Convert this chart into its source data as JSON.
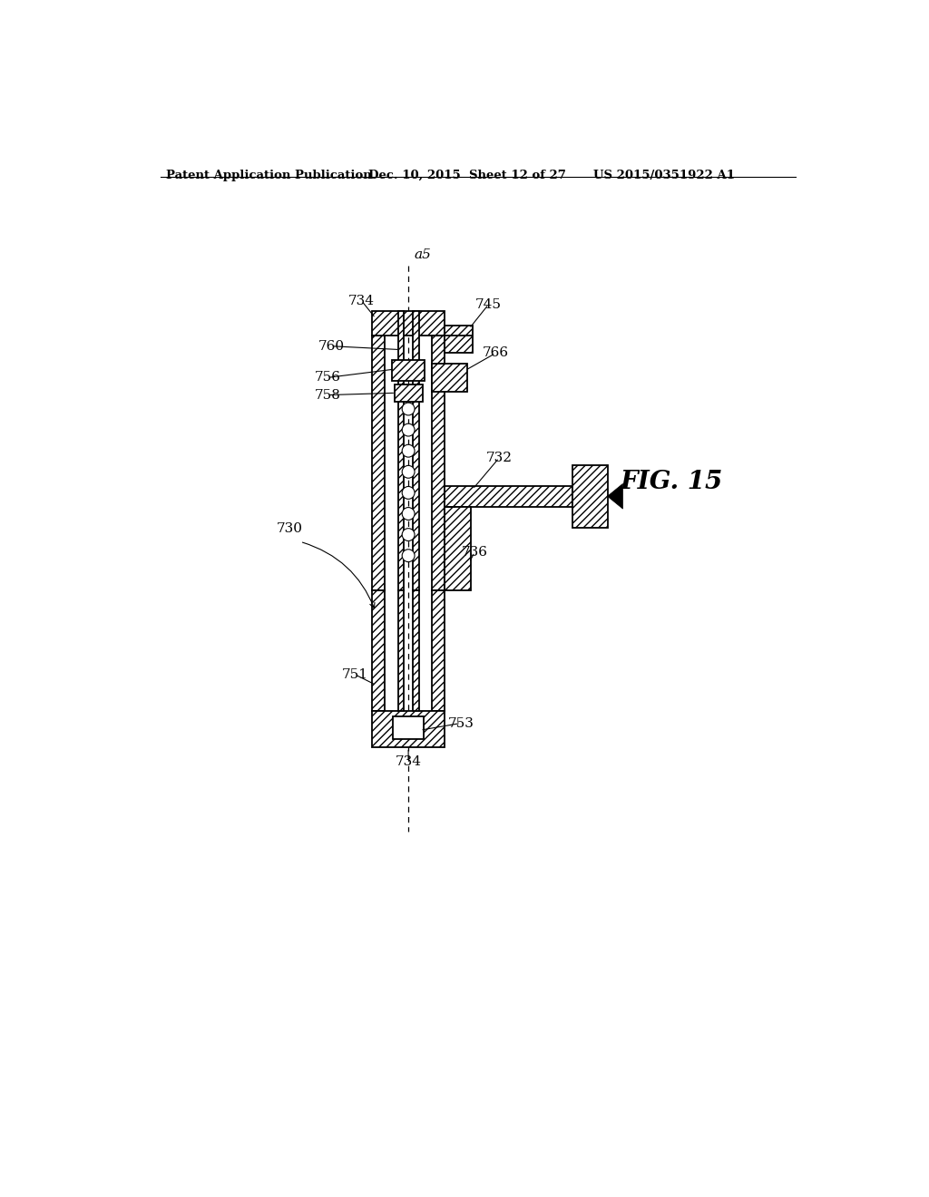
{
  "header_left": "Patent Application Publication",
  "header_middle": "Dec. 10, 2015  Sheet 12 of 27",
  "header_right": "US 2015/0351922 A1",
  "fig_label": "FIG. 15",
  "axis_label": "a5",
  "background_color": "#ffffff"
}
